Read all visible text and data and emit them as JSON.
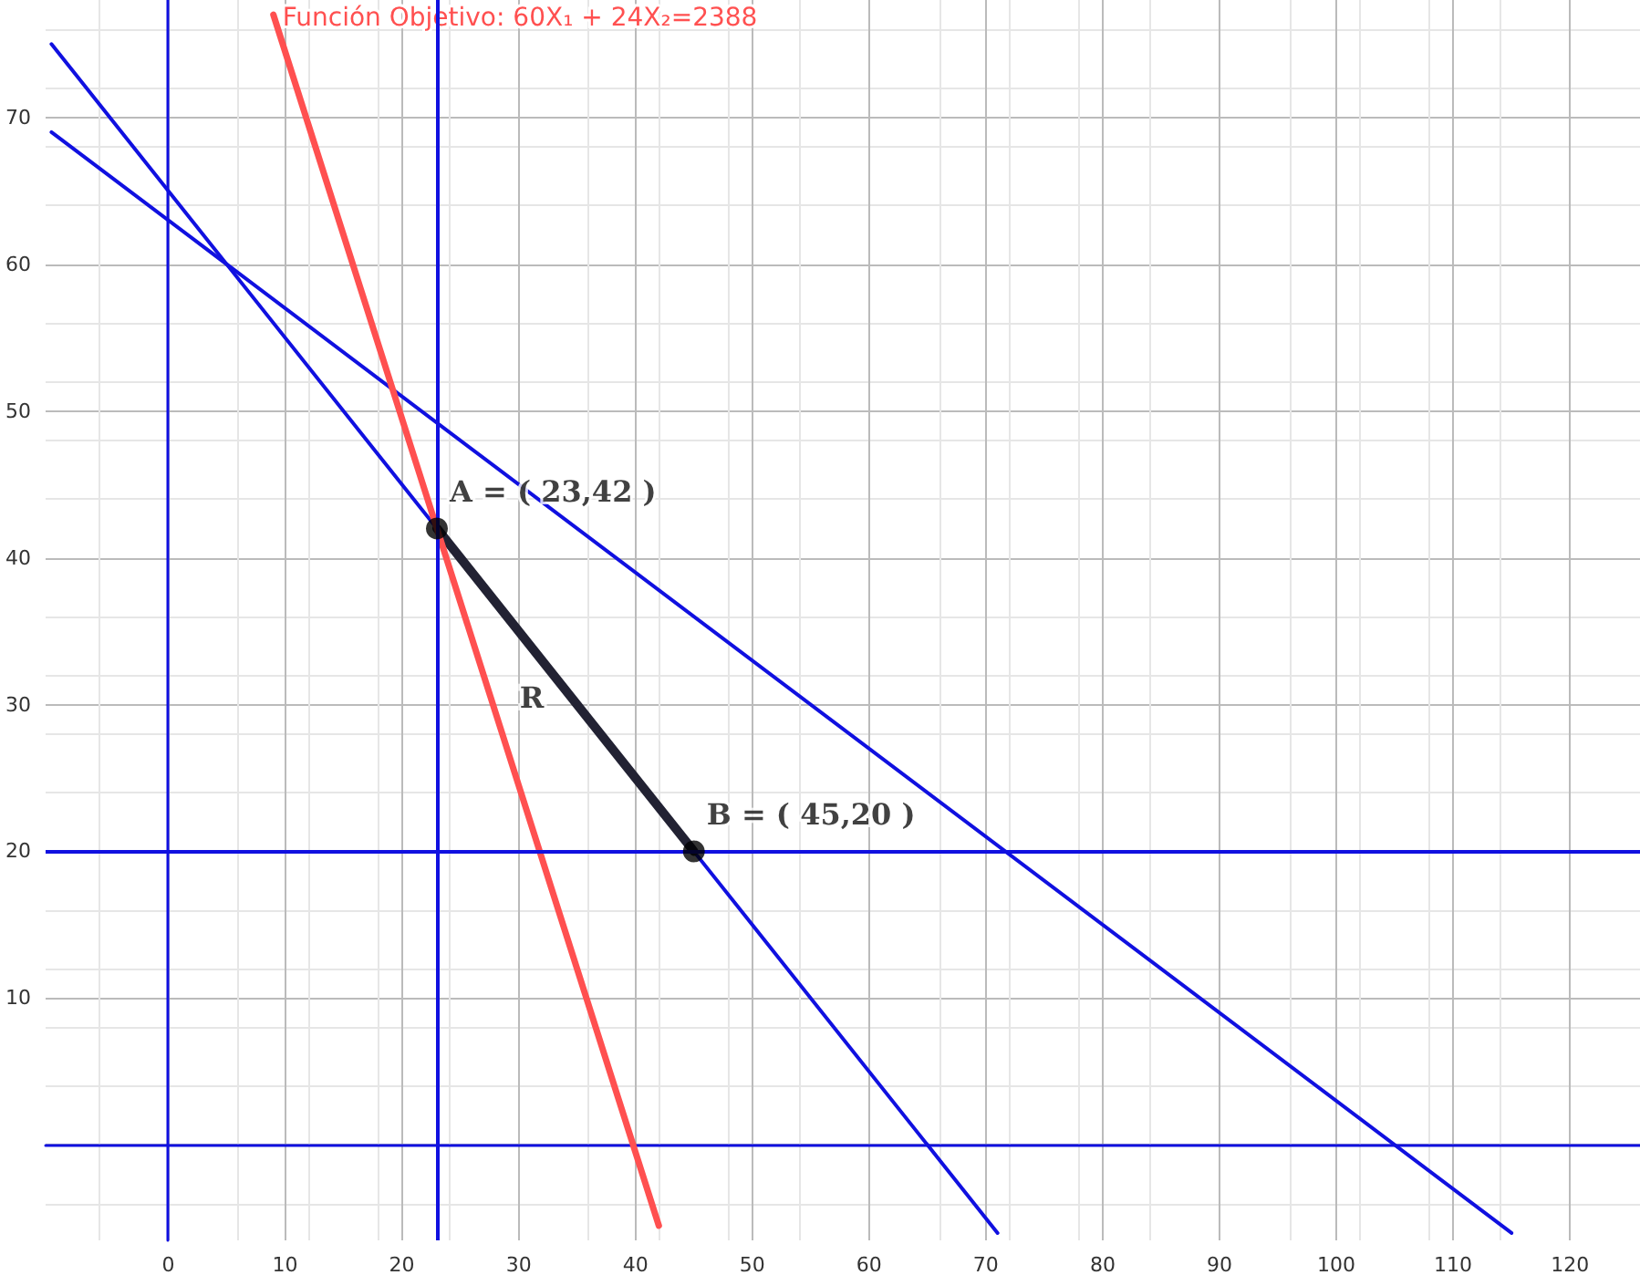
{
  "chart_data": {
    "type": "line",
    "xlim": [
      -10.5,
      126
    ],
    "ylim": [
      -6.5,
      78
    ],
    "xticks": [
      0,
      10,
      20,
      30,
      40,
      50,
      60,
      70,
      80,
      90,
      100,
      110,
      120
    ],
    "yticks": [
      {
        "value": 0,
        "label": null
      },
      10,
      20,
      30,
      40,
      50,
      60,
      70
    ],
    "grid": true,
    "legend": false,
    "marker": "none",
    "line_style": "solid",
    "series": [
      {
        "name": "Función Objetivo: 60X₁ + 24X₂=2388",
        "color": "#ff5050",
        "x": [
          9,
          42
        ],
        "values": [
          77,
          -5.5
        ]
      },
      {
        "color": "#1010e0",
        "x": [
          -10,
          71
        ],
        "values": [
          75,
          -6
        ]
      },
      {
        "color": "#1010e0",
        "x": [
          -10,
          115
        ],
        "values": [
          69,
          -6
        ]
      },
      {
        "color": "#222233",
        "x": [
          23,
          45
        ],
        "values": [
          42,
          20
        ]
      },
      {
        "type": "scatter",
        "marker": "circle",
        "color": "#000000",
        "x": [
          23,
          45
        ],
        "values": [
          42,
          20
        ]
      }
    ],
    "ref_lines": [
      {
        "axis": "x",
        "value": 23,
        "color": "#1010e0"
      },
      {
        "axis": "y",
        "value": 20,
        "color": "#1010e0"
      }
    ],
    "annotations": [
      {
        "text": "A = ( 23,42 )",
        "x": 23,
        "y": 42
      },
      {
        "text": "B = ( 45,20 )",
        "x": 45,
        "y": 20
      },
      {
        "text": "R",
        "x": 29,
        "y": 28
      }
    ]
  }
}
